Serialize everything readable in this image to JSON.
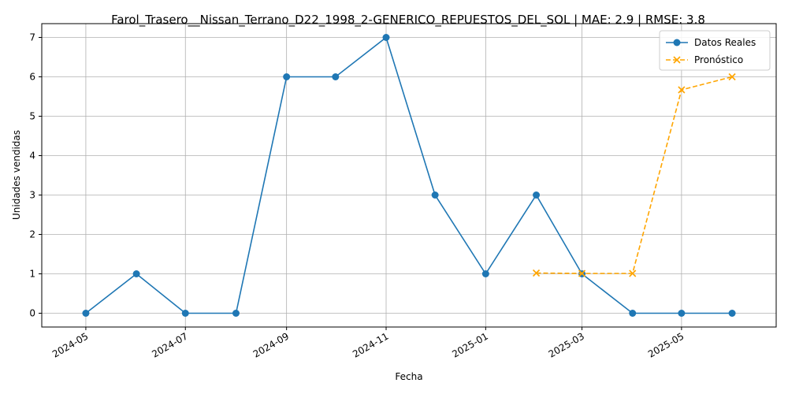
{
  "chart_data": {
    "type": "line",
    "title": "Farol_Trasero__Nissan_Terrano_D22_1998_2-GENERICO_REPUESTOS_DEL_SOL | MAE: 2.9 | RMSE: 3.8",
    "xlabel": "Fecha",
    "ylabel": "Unidades vendidas",
    "xlim": [
      "2024-04-04",
      "2025-06-28"
    ],
    "ylim": [
      -0.35,
      7.35
    ],
    "x_ticks": [
      "2024-05",
      "2024-07",
      "2024-09",
      "2024-11",
      "2025-01",
      "2025-03",
      "2025-05"
    ],
    "x_tick_dates": [
      "2024-05-01",
      "2024-07-01",
      "2024-09-01",
      "2024-11-01",
      "2025-01-01",
      "2025-03-01",
      "2025-05-01"
    ],
    "y_ticks": [
      0,
      1,
      2,
      3,
      4,
      5,
      6,
      7
    ],
    "grid": true,
    "legend": "top-right",
    "series": [
      {
        "name": "Datos Reales",
        "color": "#1f77b4",
        "marker": "circle",
        "linestyle": "solid",
        "x": [
          "2024-05-01",
          "2024-06-01",
          "2024-07-01",
          "2024-08-01",
          "2024-09-01",
          "2024-10-01",
          "2024-11-01",
          "2024-12-01",
          "2025-01-01",
          "2025-02-01",
          "2025-03-01",
          "2025-04-01",
          "2025-05-01",
          "2025-06-01"
        ],
        "y": [
          0,
          1,
          0,
          0,
          6,
          6,
          7,
          3,
          1,
          3,
          1,
          0,
          0,
          0
        ]
      },
      {
        "name": "Pronóstico",
        "color": "#ffa500",
        "marker": "x",
        "linestyle": "dashed",
        "x": [
          "2025-02-01",
          "2025-03-01",
          "2025-04-01",
          "2025-05-01",
          "2025-06-01"
        ],
        "y": [
          1.02,
          1.01,
          1.01,
          5.67,
          6.0
        ]
      }
    ]
  }
}
